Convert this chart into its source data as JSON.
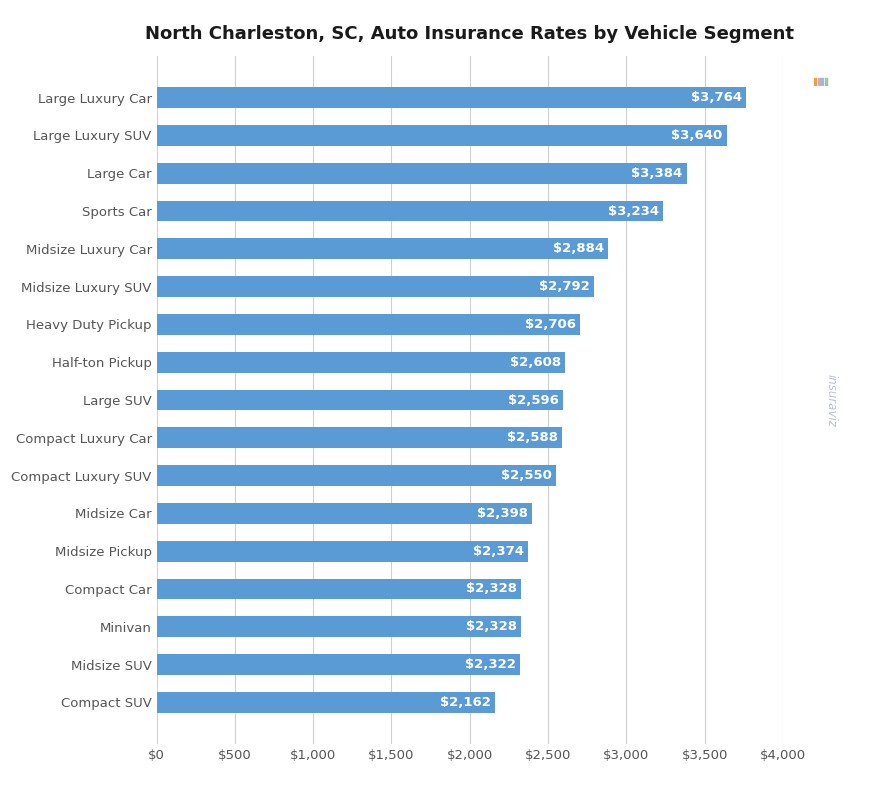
{
  "title": "North Charleston, SC, Auto Insurance Rates by Vehicle Segment",
  "categories": [
    "Large Luxury Car",
    "Large Luxury SUV",
    "Large Car",
    "Sports Car",
    "Midsize Luxury Car",
    "Midsize Luxury SUV",
    "Heavy Duty Pickup",
    "Half-ton Pickup",
    "Large SUV",
    "Compact Luxury Car",
    "Compact Luxury SUV",
    "Midsize Car",
    "Midsize Pickup",
    "Compact Car",
    "Minivan",
    "Midsize SUV",
    "Compact SUV"
  ],
  "values": [
    3764,
    3640,
    3384,
    3234,
    2884,
    2792,
    2706,
    2608,
    2596,
    2588,
    2550,
    2398,
    2374,
    2328,
    2328,
    2322,
    2162
  ],
  "bar_color": "#5b9bd5",
  "label_color": "#ffffff",
  "background_color": "#ffffff",
  "grid_color": "#d0d0d0",
  "title_color": "#1a1a1a",
  "tick_color": "#555555",
  "xlim": [
    0,
    4000
  ],
  "xticks": [
    0,
    500,
    1000,
    1500,
    2000,
    2500,
    3000,
    3500,
    4000
  ],
  "xtick_labels": [
    "$0",
    "$500",
    "$1,000",
    "$1,500",
    "$2,000",
    "$2,500",
    "$3,000",
    "$3,500",
    "$4,000"
  ],
  "bar_height": 0.55,
  "title_fontsize": 13,
  "label_fontsize": 9.5,
  "tick_fontsize": 9.5,
  "figsize": [
    8.7,
    8.0
  ],
  "dpi": 100
}
